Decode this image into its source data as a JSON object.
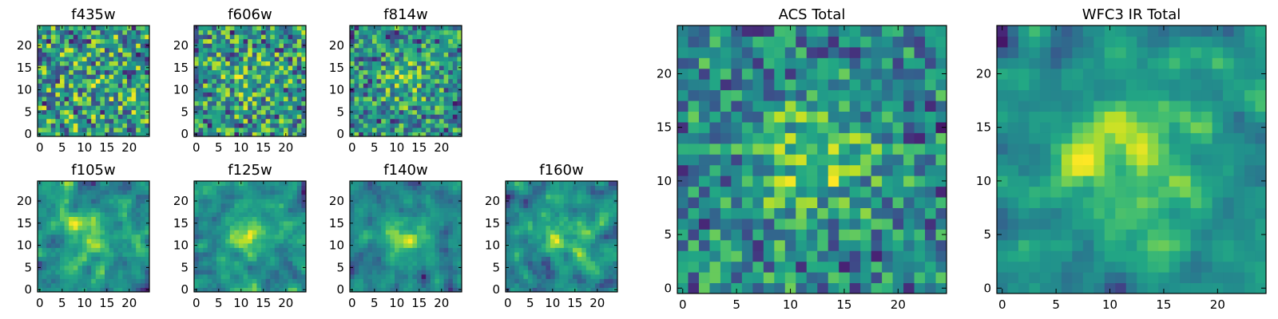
{
  "chart_data": [
    {
      "type": "heatmap",
      "title": "f435w",
      "grid_size": 25,
      "seed": 11,
      "peak": 0.05,
      "smooth": 0,
      "xticks": [
        0,
        5,
        10,
        15,
        20
      ],
      "yticks": [
        0,
        5,
        10,
        15,
        20
      ],
      "xlim": [
        -0.5,
        24.5
      ],
      "ylim": [
        -0.5,
        24.5
      ],
      "colormap": "viridis"
    },
    {
      "type": "heatmap",
      "title": "f606w",
      "grid_size": 25,
      "seed": 23,
      "peak": 0.15,
      "smooth": 0,
      "xticks": [
        0,
        5,
        10,
        15,
        20
      ],
      "yticks": [
        0,
        5,
        10,
        15,
        20
      ],
      "xlim": [
        -0.5,
        24.5
      ],
      "ylim": [
        -0.5,
        24.5
      ],
      "colormap": "viridis"
    },
    {
      "type": "heatmap",
      "title": "f814w",
      "grid_size": 25,
      "seed": 37,
      "peak": 0.25,
      "smooth": 0,
      "xticks": [
        0,
        5,
        10,
        15,
        20
      ],
      "yticks": [
        0,
        5,
        10,
        15,
        20
      ],
      "xlim": [
        -0.5,
        24.5
      ],
      "ylim": [
        -0.5,
        24.5
      ],
      "colormap": "viridis"
    },
    {
      "type": "heatmap",
      "title": "f105w",
      "grid_size": 25,
      "seed": 41,
      "peak": 0.3,
      "smooth": 1,
      "xticks": [
        0,
        5,
        10,
        15,
        20
      ],
      "yticks": [
        0,
        5,
        10,
        15,
        20
      ],
      "xlim": [
        -0.5,
        24.5
      ],
      "ylim": [
        -0.5,
        24.5
      ],
      "colormap": "viridis"
    },
    {
      "type": "heatmap",
      "title": "f125w",
      "grid_size": 25,
      "seed": 53,
      "peak": 0.3,
      "smooth": 1,
      "xticks": [
        0,
        5,
        10,
        15,
        20
      ],
      "yticks": [
        0,
        5,
        10,
        15,
        20
      ],
      "xlim": [
        -0.5,
        24.5
      ],
      "ylim": [
        -0.5,
        24.5
      ],
      "colormap": "viridis"
    },
    {
      "type": "heatmap",
      "title": "f140w",
      "grid_size": 25,
      "seed": 67,
      "peak": 0.35,
      "smooth": 1,
      "xticks": [
        0,
        5,
        10,
        15,
        20
      ],
      "yticks": [
        0,
        5,
        10,
        15,
        20
      ],
      "xlim": [
        -0.5,
        24.5
      ],
      "ylim": [
        -0.5,
        24.5
      ],
      "colormap": "viridis"
    },
    {
      "type": "heatmap",
      "title": "f160w",
      "grid_size": 25,
      "seed": 79,
      "peak": 0.3,
      "smooth": 1,
      "xticks": [
        0,
        5,
        10,
        15,
        20
      ],
      "yticks": [
        0,
        5,
        10,
        15,
        20
      ],
      "xlim": [
        -0.5,
        24.5
      ],
      "ylim": [
        -0.5,
        24.5
      ],
      "colormap": "viridis"
    },
    {
      "type": "heatmap",
      "title": "ACS Total",
      "grid_size": 25,
      "seed": 91,
      "peak": 0.4,
      "smooth": 0,
      "xticks": [
        0,
        5,
        10,
        15,
        20
      ],
      "yticks": [
        0,
        5,
        10,
        15,
        20
      ],
      "xlim": [
        -0.5,
        24.5
      ],
      "ylim": [
        -0.5,
        24.5
      ],
      "colormap": "viridis"
    },
    {
      "type": "heatmap",
      "title": "WFC3 IR Total",
      "grid_size": 25,
      "seed": 103,
      "peak": 0.5,
      "smooth": 1,
      "xticks": [
        0,
        5,
        10,
        15,
        20
      ],
      "yticks": [
        0,
        5,
        10,
        15,
        20
      ],
      "xlim": [
        -0.5,
        24.5
      ],
      "ylim": [
        -0.5,
        24.5
      ],
      "colormap": "viridis"
    }
  ]
}
